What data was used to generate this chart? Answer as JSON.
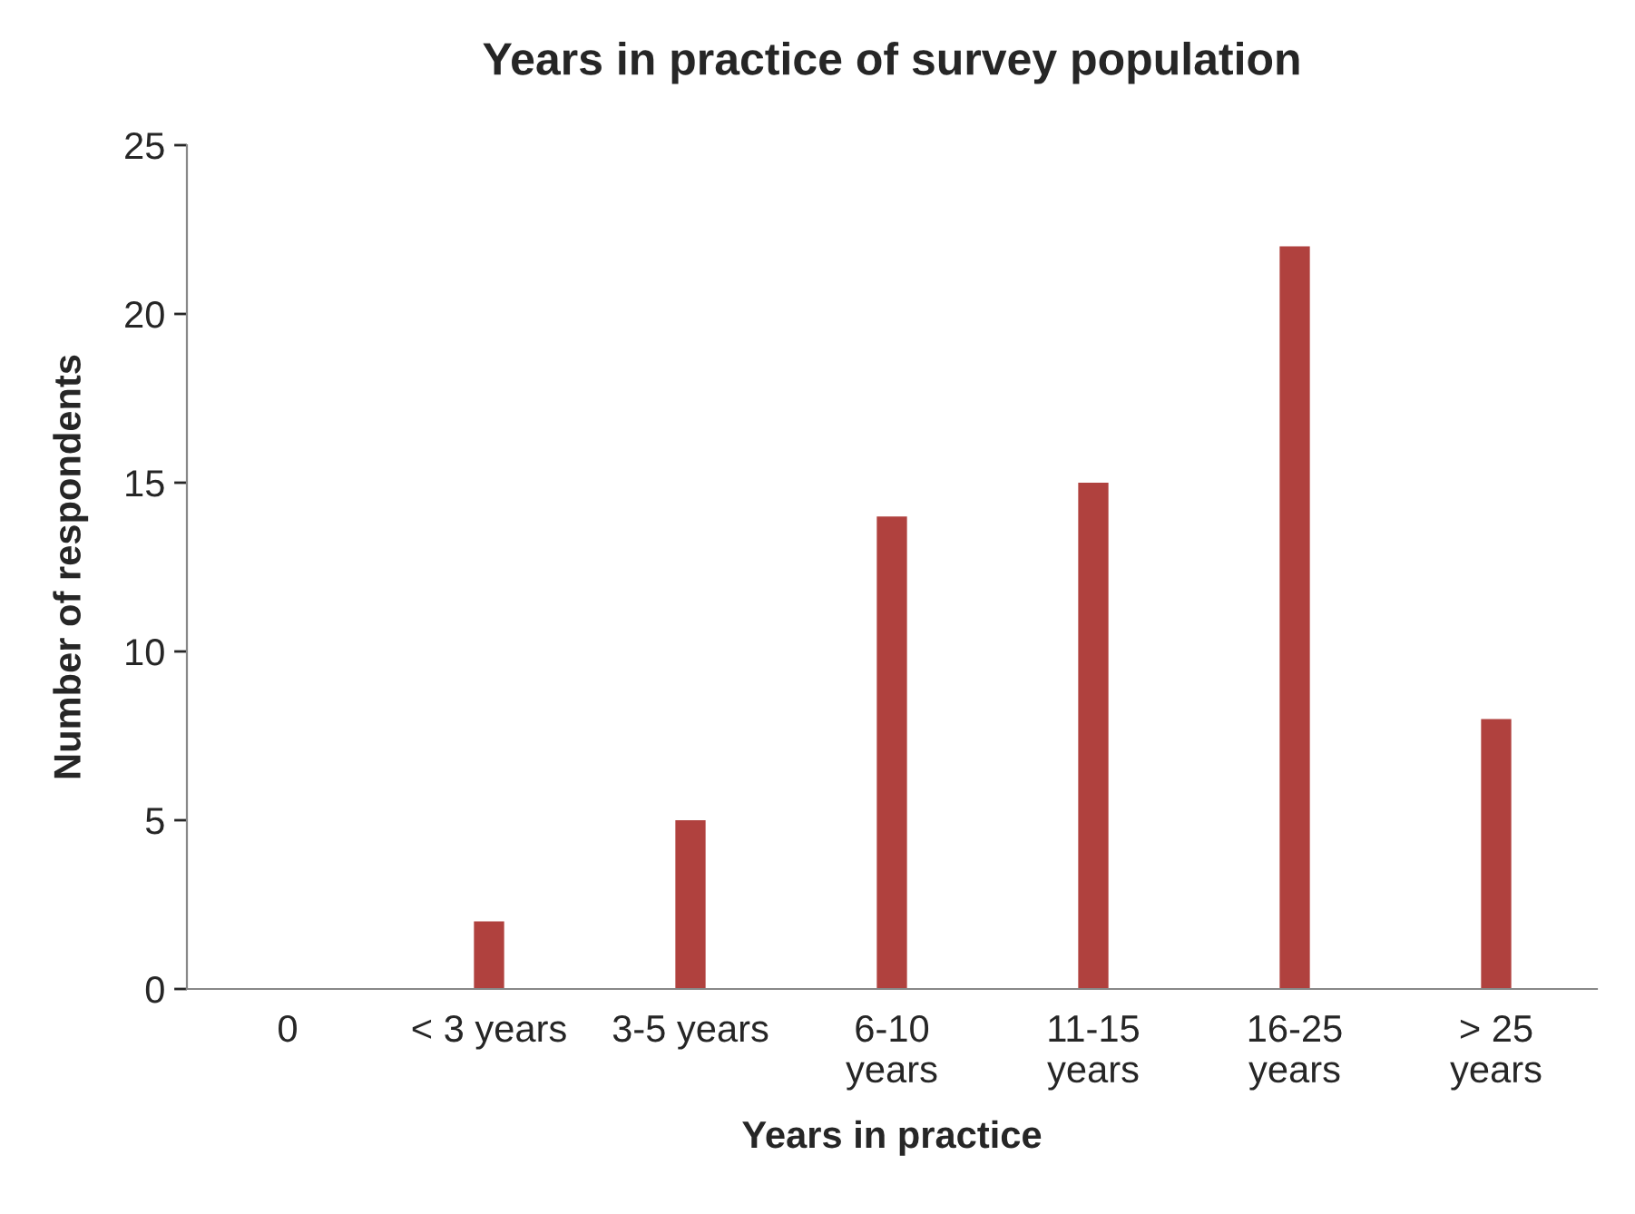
{
  "chart_data": {
    "type": "bar",
    "title": "Years in practice of survey population",
    "xlabel": "Years in practice",
    "ylabel": "Number of respondents",
    "categories": [
      "0",
      "< 3 years",
      "3-5 years",
      "6-10\nyears",
      "11-15\nyears",
      "16-25\nyears",
      "> 25\nyears"
    ],
    "values": [
      0,
      2,
      5,
      14,
      15,
      22,
      8
    ],
    "color": "#b0413e",
    "ylim": [
      0,
      25
    ],
    "yticks": [
      0,
      5,
      10,
      15,
      20,
      25
    ],
    "grid": false,
    "legend": false
  }
}
